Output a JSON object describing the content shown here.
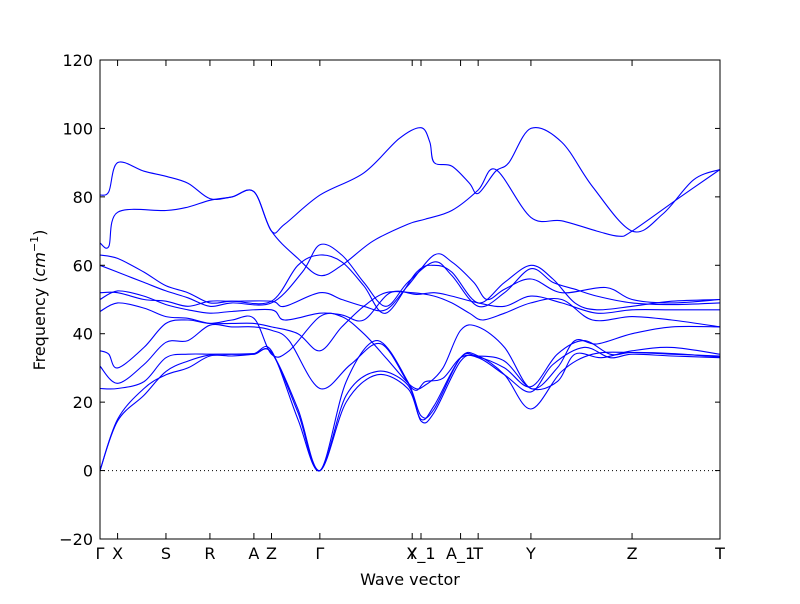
{
  "chart_data": {
    "type": "line",
    "title": "",
    "xlabel": "Wave vector",
    "ylabel": "Frequency ($cm^{-1}$)",
    "ylabel_parts": {
      "text": "Frequency (",
      "unit": "cm",
      "exp": "−1",
      "close": ")"
    },
    "ylim": [
      -20,
      120
    ],
    "yticks": [
      -20,
      0,
      20,
      40,
      60,
      80,
      100,
      120
    ],
    "grid": false,
    "legend": "none",
    "line_color": "#0000ff",
    "zero_line": {
      "y": 0,
      "style": "dotted",
      "color": "#000000"
    },
    "xlim": [
      0,
      14.1
    ],
    "x_ticks": [
      {
        "x": 0,
        "label": "Γ"
      },
      {
        "x": 0.4,
        "label": "X"
      },
      {
        "x": 1.5,
        "label": "S"
      },
      {
        "x": 2.5,
        "label": "R"
      },
      {
        "x": 3.5,
        "label": "A"
      },
      {
        "x": 3.9,
        "label": "Z"
      },
      {
        "x": 5.0,
        "label": "Γ"
      },
      {
        "x": 7.1,
        "label": "Y"
      },
      {
        "x": 7.3,
        "label": "X_1"
      },
      {
        "x": 8.2,
        "label": "A_1"
      },
      {
        "x": 8.6,
        "label": "T"
      },
      {
        "x": 9.8,
        "label": "Y"
      },
      {
        "x": 12.1,
        "label": "Z"
      },
      {
        "x": 14.1,
        "label": "T"
      }
    ],
    "series": [
      {
        "values": [
          [
            0,
            80.5
          ],
          [
            0.2,
            81.5
          ],
          [
            0.4,
            90
          ],
          [
            1,
            87.5
          ],
          [
            1.5,
            86
          ],
          [
            2,
            84
          ],
          [
            2.5,
            79.5
          ],
          [
            3,
            80
          ],
          [
            3.5,
            81.5
          ],
          [
            3.9,
            70
          ],
          [
            4.2,
            72
          ],
          [
            5,
            80.5
          ],
          [
            6,
            87
          ],
          [
            6.8,
            97
          ],
          [
            7.3,
            100.2
          ],
          [
            7.5,
            96
          ],
          [
            7.6,
            90
          ],
          [
            8,
            89
          ],
          [
            8.4,
            84
          ],
          [
            8.6,
            81
          ],
          [
            9,
            87.5
          ],
          [
            9.3,
            90
          ],
          [
            9.8,
            100
          ],
          [
            10.5,
            96
          ],
          [
            11.2,
            83
          ],
          [
            12.1,
            70
          ],
          [
            12.8,
            75
          ],
          [
            13.5,
            85
          ],
          [
            14.1,
            88
          ]
        ]
      },
      {
        "values": [
          [
            0,
            66.5
          ],
          [
            0.2,
            65.5
          ],
          [
            0.4,
            75.5
          ],
          [
            1.5,
            76
          ],
          [
            2,
            77
          ],
          [
            2.5,
            79
          ],
          [
            3,
            80
          ],
          [
            3.5,
            81.5
          ],
          [
            3.9,
            70
          ],
          [
            4.5,
            62
          ],
          [
            5,
            57
          ],
          [
            5.5,
            60
          ],
          [
            6.2,
            67
          ],
          [
            7,
            72
          ],
          [
            7.4,
            73.5
          ],
          [
            8,
            76
          ],
          [
            8.6,
            82
          ],
          [
            9,
            88
          ],
          [
            9.8,
            74
          ],
          [
            10.5,
            73
          ],
          [
            11.3,
            70
          ],
          [
            11.8,
            68.5
          ],
          [
            12.1,
            70
          ],
          [
            13.2,
            80
          ],
          [
            14.1,
            88
          ]
        ]
      },
      {
        "values": [
          [
            0,
            63
          ],
          [
            0.4,
            62
          ],
          [
            1,
            58
          ],
          [
            1.5,
            54
          ],
          [
            2,
            52
          ],
          [
            2.5,
            49
          ],
          [
            3,
            49.5
          ],
          [
            3.9,
            49.5
          ],
          [
            4.5,
            60
          ],
          [
            5,
            63
          ],
          [
            5.5,
            61
          ],
          [
            6,
            54
          ],
          [
            6.5,
            46
          ],
          [
            7.2,
            58
          ],
          [
            7.6,
            60
          ],
          [
            8,
            58
          ],
          [
            8.6,
            49
          ],
          [
            9.2,
            55
          ],
          [
            9.8,
            60
          ],
          [
            10.3,
            56
          ],
          [
            10.8,
            49
          ],
          [
            11.3,
            47
          ],
          [
            12.1,
            48
          ],
          [
            13,
            49.5
          ],
          [
            14.1,
            50
          ]
        ]
      },
      {
        "values": [
          [
            0,
            60
          ],
          [
            0.4,
            58
          ],
          [
            1,
            55
          ],
          [
            1.5,
            52.5
          ],
          [
            2,
            50.5
          ],
          [
            2.5,
            48
          ],
          [
            3,
            49
          ],
          [
            3.9,
            49
          ],
          [
            4.6,
            58
          ],
          [
            5,
            66
          ],
          [
            5.5,
            63
          ],
          [
            6,
            55
          ],
          [
            6.5,
            48
          ],
          [
            7,
            55
          ],
          [
            7.6,
            61
          ],
          [
            8,
            57
          ],
          [
            8.6,
            48
          ],
          [
            9.2,
            52
          ],
          [
            9.8,
            59
          ],
          [
            10.3,
            55
          ],
          [
            10.8,
            53
          ],
          [
            11.3,
            51
          ],
          [
            12.1,
            49
          ],
          [
            13,
            48.5
          ],
          [
            14.1,
            49
          ]
        ]
      },
      {
        "values": [
          [
            0,
            52
          ],
          [
            0.4,
            52
          ],
          [
            1,
            50
          ],
          [
            1.5,
            49.5
          ],
          [
            2,
            48
          ],
          [
            2.5,
            49.5
          ],
          [
            3,
            49.5
          ],
          [
            3.9,
            49.5
          ],
          [
            4.2,
            48
          ],
          [
            5,
            52
          ],
          [
            5.5,
            50
          ],
          [
            6,
            48
          ],
          [
            6.5,
            47
          ],
          [
            7,
            54
          ],
          [
            7.6,
            63
          ],
          [
            8,
            61
          ],
          [
            8.5,
            55
          ],
          [
            8.8,
            50
          ],
          [
            9.2,
            53
          ],
          [
            9.8,
            56
          ],
          [
            10.5,
            52
          ],
          [
            11.5,
            53.5
          ],
          [
            12.1,
            50
          ],
          [
            13,
            49
          ],
          [
            14.1,
            50
          ]
        ]
      },
      {
        "values": [
          [
            0,
            50
          ],
          [
            0.4,
            52.5
          ],
          [
            1,
            51
          ],
          [
            1.5,
            48.5
          ],
          [
            2,
            47
          ],
          [
            2.5,
            46
          ],
          [
            3,
            46.5
          ],
          [
            3.9,
            47
          ],
          [
            4.2,
            44
          ],
          [
            5,
            46
          ],
          [
            5.5,
            45.5
          ],
          [
            6,
            44
          ],
          [
            6.6,
            52
          ],
          [
            7.2,
            51.5
          ],
          [
            7.6,
            52
          ],
          [
            8,
            51
          ],
          [
            8.6,
            49
          ],
          [
            9.2,
            48
          ],
          [
            9.8,
            51
          ],
          [
            10.5,
            49
          ],
          [
            11.3,
            46
          ],
          [
            12.1,
            47
          ],
          [
            13,
            47
          ],
          [
            14.1,
            47
          ]
        ]
      },
      {
        "values": [
          [
            0,
            46.5
          ],
          [
            0.4,
            49
          ],
          [
            1,
            47.5
          ],
          [
            1.5,
            45
          ],
          [
            2,
            44.5
          ],
          [
            2.5,
            43
          ],
          [
            3,
            43
          ],
          [
            3.5,
            43
          ],
          [
            3.9,
            42
          ],
          [
            4.5,
            40
          ],
          [
            5,
            35
          ],
          [
            5.5,
            42
          ],
          [
            6,
            48
          ],
          [
            6.5,
            52
          ],
          [
            7.1,
            52
          ],
          [
            7.6,
            51
          ],
          [
            8,
            49
          ],
          [
            8.4,
            46
          ],
          [
            8.7,
            44
          ],
          [
            9.2,
            46
          ],
          [
            9.8,
            49
          ],
          [
            10.5,
            50
          ],
          [
            11.2,
            44
          ],
          [
            12.1,
            45
          ],
          [
            13,
            44
          ],
          [
            14.1,
            42
          ]
        ]
      },
      {
        "values": [
          [
            0,
            35
          ],
          [
            0.2,
            34
          ],
          [
            0.4,
            30
          ],
          [
            1,
            36
          ],
          [
            1.5,
            43
          ],
          [
            2,
            44
          ],
          [
            2.5,
            43
          ],
          [
            3,
            44
          ],
          [
            3.5,
            44.5
          ],
          [
            3.9,
            34
          ],
          [
            4.3,
            35
          ],
          [
            5,
            45
          ],
          [
            5.5,
            45
          ],
          [
            6,
            40
          ],
          [
            6.5,
            33
          ],
          [
            7.1,
            24.5
          ],
          [
            7.4,
            25
          ],
          [
            7.8,
            30
          ],
          [
            8.2,
            41
          ],
          [
            8.6,
            42
          ],
          [
            9.2,
            36
          ],
          [
            9.8,
            24
          ],
          [
            10.4,
            30
          ],
          [
            10.8,
            38
          ],
          [
            11.3,
            37
          ],
          [
            12.1,
            40
          ],
          [
            13,
            42
          ],
          [
            14.1,
            42
          ]
        ]
      },
      {
        "values": [
          [
            0,
            30.5
          ],
          [
            0.4,
            25.5
          ],
          [
            1,
            31
          ],
          [
            1.5,
            37.5
          ],
          [
            2,
            38
          ],
          [
            2.5,
            42.5
          ],
          [
            3,
            42
          ],
          [
            3.5,
            42
          ],
          [
            3.9,
            41
          ],
          [
            4.3,
            38
          ],
          [
            5,
            24
          ],
          [
            5.7,
            31
          ],
          [
            6.4,
            37
          ],
          [
            7.1,
            24
          ],
          [
            7.4,
            26
          ],
          [
            7.8,
            27
          ],
          [
            8.2,
            33
          ],
          [
            8.6,
            33.5
          ],
          [
            9.2,
            32
          ],
          [
            9.8,
            24
          ],
          [
            10.4,
            26
          ],
          [
            10.8,
            34
          ],
          [
            11.4,
            33
          ],
          [
            12.1,
            35
          ],
          [
            13,
            36
          ],
          [
            14.1,
            34
          ]
        ]
      },
      {
        "values": [
          [
            0,
            24
          ],
          [
            0.4,
            24
          ],
          [
            1,
            26
          ],
          [
            1.5,
            33
          ],
          [
            2,
            34
          ],
          [
            2.5,
            34
          ],
          [
            3,
            34
          ],
          [
            3.5,
            34
          ],
          [
            3.9,
            34.5
          ],
          [
            4.5,
            17
          ],
          [
            5,
            0
          ],
          [
            5.6,
            26
          ],
          [
            6.3,
            38
          ],
          [
            7,
            26
          ],
          [
            7.3,
            16
          ],
          [
            7.6,
            18
          ],
          [
            8.2,
            33
          ],
          [
            8.6,
            33.5
          ],
          [
            9.2,
            28
          ],
          [
            9.8,
            18
          ],
          [
            10.5,
            29
          ],
          [
            11.2,
            34
          ],
          [
            12.1,
            34.5
          ],
          [
            13,
            34
          ],
          [
            14.1,
            33.5
          ]
        ]
      },
      {
        "values": [
          [
            0,
            0
          ],
          [
            0.4,
            15
          ],
          [
            1,
            24
          ],
          [
            1.5,
            28
          ],
          [
            2,
            30
          ],
          [
            2.5,
            33.5
          ],
          [
            3,
            33.5
          ],
          [
            3.5,
            34
          ],
          [
            3.9,
            34.5
          ],
          [
            4.5,
            18
          ],
          [
            5,
            0
          ],
          [
            5.6,
            22
          ],
          [
            6.3,
            29
          ],
          [
            7,
            25
          ],
          [
            7.3,
            14.5
          ],
          [
            7.6,
            17
          ],
          [
            8.2,
            32
          ],
          [
            8.6,
            33
          ],
          [
            9.2,
            28
          ],
          [
            9.8,
            23
          ],
          [
            10.3,
            31
          ],
          [
            11,
            36
          ],
          [
            11.6,
            33
          ],
          [
            12.1,
            34
          ],
          [
            13,
            33.5
          ],
          [
            14.1,
            33
          ]
        ]
      },
      {
        "values": [
          [
            0,
            0
          ],
          [
            0.4,
            14.5
          ],
          [
            1,
            22
          ],
          [
            1.5,
            29
          ],
          [
            2,
            32
          ],
          [
            2.5,
            33.8
          ],
          [
            3,
            34
          ],
          [
            3.5,
            34.2
          ],
          [
            3.9,
            35
          ],
          [
            4.5,
            15
          ],
          [
            5,
            0
          ],
          [
            5.6,
            20
          ],
          [
            6.3,
            28
          ],
          [
            7,
            24
          ],
          [
            7.3,
            15
          ],
          [
            7.6,
            19
          ],
          [
            8.2,
            33
          ],
          [
            8.6,
            33.2
          ],
          [
            9.2,
            30
          ],
          [
            9.8,
            24.5
          ],
          [
            10.4,
            34
          ],
          [
            11,
            38
          ],
          [
            11.6,
            34
          ],
          [
            12.1,
            34.5
          ],
          [
            13,
            34.2
          ],
          [
            14.1,
            33.2
          ]
        ]
      }
    ]
  }
}
